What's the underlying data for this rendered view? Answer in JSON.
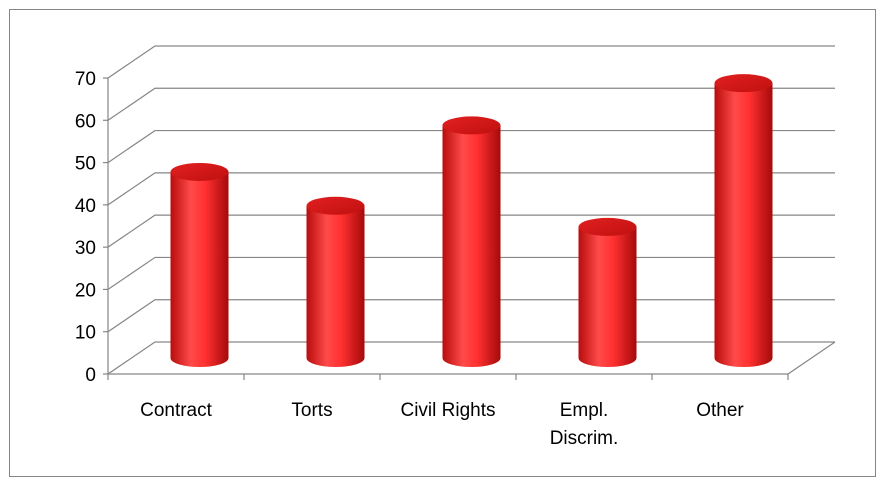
{
  "chart_data": {
    "type": "bar3d",
    "categories": [
      "Contract",
      "Torts",
      "Civil Rights",
      "Empl. Discrim.",
      "Other"
    ],
    "values": [
      44,
      36,
      55,
      31,
      65
    ],
    "color": "#ff2a2a",
    "ylim": [
      0,
      70
    ],
    "yticks": [
      0,
      10,
      20,
      30,
      40,
      50,
      60,
      70
    ],
    "grid": true
  }
}
